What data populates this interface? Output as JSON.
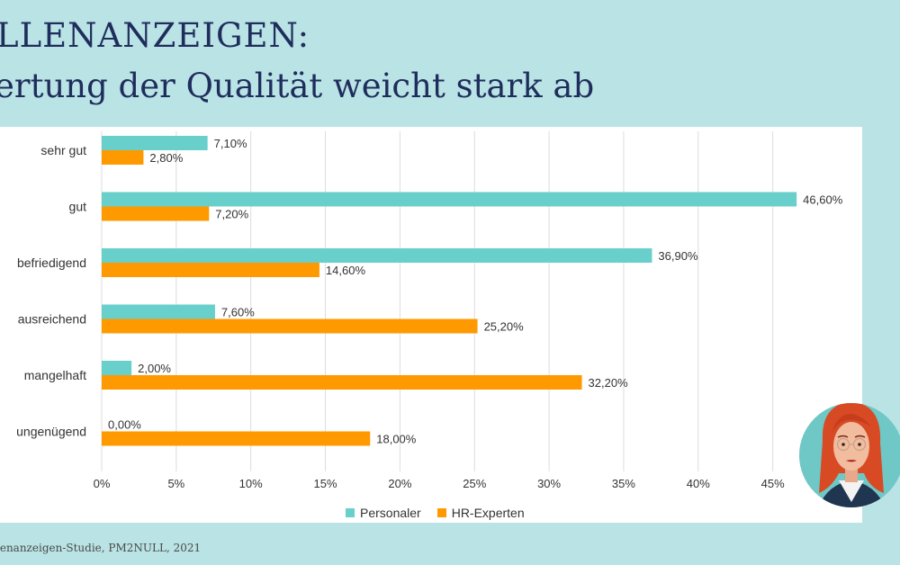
{
  "header": {
    "title_line1": "LLENANZEIGEN:",
    "title_line2": "ertung der Qualität weicht stark ab"
  },
  "footer": {
    "source": "lenanzeigen-Studie, PM2NULL, 2021"
  },
  "colors": {
    "personaler": "#69cfcb",
    "hr_experten": "#ff9900",
    "background": "#b9e3e4",
    "title": "#1f2d5c"
  },
  "chart_data": {
    "type": "bar",
    "orientation": "horizontal",
    "title": "",
    "xlabel": "",
    "ylabel": "",
    "categories": [
      "sehr gut",
      "gut",
      "befriedigend",
      "ausreichend",
      "mangelhaft",
      "ungenügend"
    ],
    "series": [
      {
        "name": "Personaler",
        "values": [
          7.1,
          46.6,
          36.9,
          7.6,
          2.0,
          0.0
        ],
        "labels": [
          "7,10%",
          "46,60%",
          "36,90%",
          "7,60%",
          "2,00%",
          "0,00%"
        ]
      },
      {
        "name": "HR-Experten",
        "values": [
          2.8,
          7.2,
          14.6,
          25.2,
          32.2,
          18.0
        ],
        "labels": [
          "2,80%",
          "7,20%",
          "14,60%",
          "25,20%",
          "32,20%",
          "18,00%"
        ]
      }
    ],
    "xlim": [
      0,
      50
    ],
    "x_ticks": [
      0,
      5,
      10,
      15,
      20,
      25,
      30,
      35,
      40,
      45
    ],
    "x_tick_labels": [
      "0%",
      "5%",
      "10%",
      "15%",
      "20%",
      "25%",
      "30%",
      "35%",
      "40%",
      "45%"
    ],
    "grid": true,
    "legend_position": "bottom"
  }
}
